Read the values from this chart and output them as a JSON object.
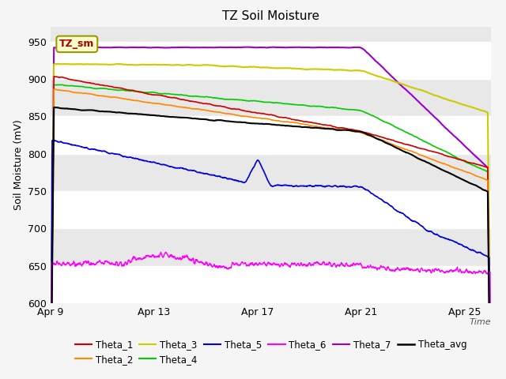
{
  "title": "TZ Soil Moisture",
  "ylabel": "Soil Moisture (mV)",
  "xlabel": "Time",
  "ylim": [
    600,
    970
  ],
  "yticks": [
    600,
    650,
    700,
    750,
    800,
    850,
    900,
    950
  ],
  "xtick_labels": [
    "Apr 9",
    "Apr 13",
    "Apr 17",
    "Apr 21",
    "Apr 25"
  ],
  "xtick_positions": [
    0,
    4,
    8,
    12,
    16
  ],
  "background_color": "#f5f5f5",
  "plot_bg_color": "#e8e8e8",
  "legend_label": "TZ_sm",
  "legend_box_facecolor": "#ffffcc",
  "legend_box_edgecolor": "#999900",
  "legend_text_color": "#aa0000",
  "series": {
    "Theta_1": {
      "color": "#cc0000",
      "lw": 1.2
    },
    "Theta_2": {
      "color": "#ff8800",
      "lw": 1.2
    },
    "Theta_3": {
      "color": "#cccc00",
      "lw": 1.5
    },
    "Theta_4": {
      "color": "#00cc00",
      "lw": 1.2
    },
    "Theta_5": {
      "color": "#0000dd",
      "lw": 1.2
    },
    "Theta_6": {
      "color": "#ff00ff",
      "lw": 1.0
    },
    "Theta_7": {
      "color": "#9900cc",
      "lw": 1.5
    },
    "Theta_avg": {
      "color": "#000000",
      "lw": 1.5
    }
  }
}
